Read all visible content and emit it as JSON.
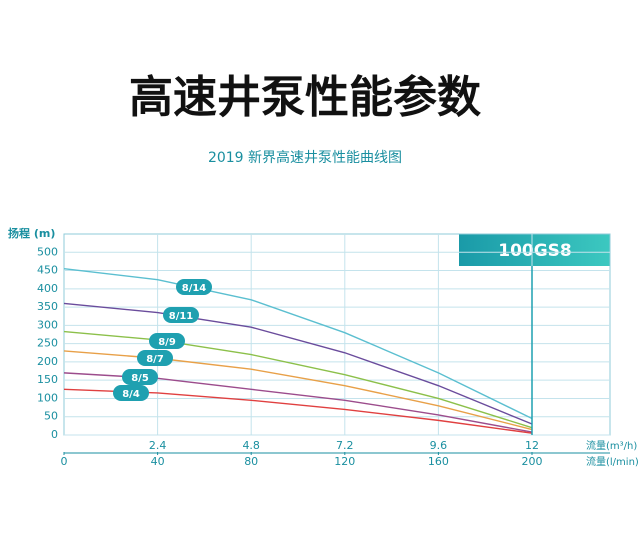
{
  "chart_data": {
    "type": "line",
    "title": "高速井泵性能参数",
    "subtitle": "2019 新界高速井泵性能曲线图",
    "badge": "100GS8",
    "ylabel": "扬程 (m)",
    "xlabel": "流量(m³/h)",
    "x2label": "流量(l/min)",
    "x": [
      0,
      2.4,
      4.8,
      7.2,
      9.6,
      12
    ],
    "xlim": [
      0,
      14
    ],
    "xticks": [
      2.4,
      4.8,
      7.2,
      9.6,
      12
    ],
    "x2lim": [
      0,
      233.33
    ],
    "x2ticks": [
      0,
      40,
      80,
      120,
      160,
      200
    ],
    "ylim": [
      0,
      550
    ],
    "yticks": [
      0,
      50,
      100,
      150,
      200,
      250,
      300,
      350,
      400,
      450,
      500
    ],
    "grid": true,
    "series": [
      {
        "name": "8/14",
        "color": "#5bbfd0",
        "values": [
          455,
          425,
          370,
          280,
          170,
          45
        ]
      },
      {
        "name": "8/11",
        "color": "#6a4c9c",
        "values": [
          360,
          335,
          295,
          225,
          135,
          30
        ]
      },
      {
        "name": "8/9",
        "color": "#8cc04a",
        "values": [
          283,
          260,
          220,
          165,
          100,
          20
        ]
      },
      {
        "name": "8/7",
        "color": "#e8a048",
        "values": [
          230,
          210,
          180,
          135,
          80,
          15
        ]
      },
      {
        "name": "8/5",
        "color": "#9c4c8c",
        "values": [
          170,
          155,
          125,
          95,
          55,
          8
        ]
      },
      {
        "name": "8/4",
        "color": "#e04040",
        "values": [
          125,
          115,
          95,
          70,
          40,
          5
        ]
      }
    ]
  }
}
